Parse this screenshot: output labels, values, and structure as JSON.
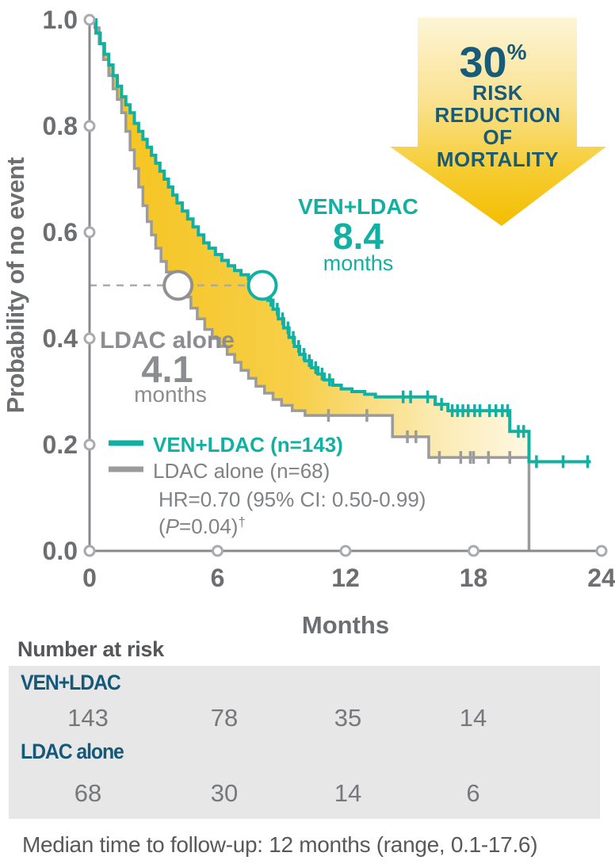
{
  "colors": {
    "teal": "#10b0a3",
    "gray_curve": "#9b9b9b",
    "dark_blue": "#175b78",
    "axis_gray": "#87898c",
    "marker_gray": "#a8aaad",
    "text_gray": "#6d6e71",
    "legend_gray": "#808285",
    "gold_deep": "#f3bd00",
    "gold_pale": "#fdf5d7",
    "box_gray": "#e7e7e8"
  },
  "callout": {
    "percent": "30",
    "percent_sign": "%",
    "lines": [
      "RISK",
      "REDUCTION",
      "OF",
      "MORTALITY"
    ]
  },
  "annotations": {
    "ven": {
      "label": "VEN+LDAC",
      "value": "8.4",
      "unit": "months"
    },
    "ldac": {
      "label": "LDAC alone",
      "value": "4.1",
      "unit": "months"
    }
  },
  "chart_data": {
    "type": "line",
    "subtype": "kaplan-meier-step",
    "xlabel": "Months",
    "ylabel": "Probability of no event",
    "xlim": [
      0,
      24
    ],
    "ylim": [
      0.0,
      1.0
    ],
    "xticks": [
      0,
      6,
      12,
      18,
      24
    ],
    "yticks": [
      "1.0",
      "0.8",
      "0.6",
      "0.4",
      "0.2",
      "0.0"
    ],
    "grid": false,
    "legend_position": "inside-lower-left",
    "median_reference_probability": 0.5,
    "series": [
      {
        "name": "VEN+LDAC (n=143)",
        "color": "#10b0a3",
        "median_months": 8.4,
        "median_marker_month": 8.1,
        "steps": [
          [
            0,
            1.0
          ],
          [
            0.3,
            0.975
          ],
          [
            0.5,
            0.955
          ],
          [
            0.7,
            0.935
          ],
          [
            0.9,
            0.915
          ],
          [
            1.1,
            0.895
          ],
          [
            1.3,
            0.875
          ],
          [
            1.5,
            0.855
          ],
          [
            1.7,
            0.84
          ],
          [
            1.9,
            0.825
          ],
          [
            2.1,
            0.805
          ],
          [
            2.3,
            0.79
          ],
          [
            2.5,
            0.775
          ],
          [
            2.7,
            0.76
          ],
          [
            2.9,
            0.745
          ],
          [
            3.1,
            0.73
          ],
          [
            3.3,
            0.715
          ],
          [
            3.5,
            0.7
          ],
          [
            3.7,
            0.685
          ],
          [
            3.9,
            0.67
          ],
          [
            4.1,
            0.655
          ],
          [
            4.35,
            0.64
          ],
          [
            4.6,
            0.625
          ],
          [
            4.85,
            0.61
          ],
          [
            5.1,
            0.595
          ],
          [
            5.35,
            0.58
          ],
          [
            5.6,
            0.57
          ],
          [
            5.9,
            0.558
          ],
          [
            6.2,
            0.547
          ],
          [
            6.5,
            0.537
          ],
          [
            6.8,
            0.528
          ],
          [
            7.1,
            0.52
          ],
          [
            7.45,
            0.512
          ],
          [
            7.8,
            0.505
          ],
          [
            8.05,
            0.49
          ],
          [
            8.35,
            0.472
          ],
          [
            8.6,
            0.455
          ],
          [
            8.85,
            0.437
          ],
          [
            9.1,
            0.42
          ],
          [
            9.35,
            0.402
          ],
          [
            9.6,
            0.385
          ],
          [
            9.85,
            0.37
          ],
          [
            10.1,
            0.358
          ],
          [
            10.4,
            0.345
          ],
          [
            10.7,
            0.333
          ],
          [
            11.0,
            0.322
          ],
          [
            11.4,
            0.312
          ],
          [
            11.8,
            0.305
          ],
          [
            12.3,
            0.3
          ],
          [
            12.9,
            0.295
          ],
          [
            13.4,
            0.29
          ],
          [
            16.2,
            0.276
          ],
          [
            16.8,
            0.264
          ],
          [
            19.7,
            0.225
          ],
          [
            20.6,
            0.168
          ],
          [
            23.5,
            0.168
          ]
        ],
        "censors": [
          [
            8.5,
            0.472
          ],
          [
            8.8,
            0.455
          ],
          [
            9.05,
            0.437
          ],
          [
            9.3,
            0.42
          ],
          [
            9.55,
            0.402
          ],
          [
            9.8,
            0.385
          ],
          [
            10.05,
            0.37
          ],
          [
            10.3,
            0.358
          ],
          [
            10.6,
            0.345
          ],
          [
            10.9,
            0.333
          ],
          [
            11.25,
            0.322
          ],
          [
            14.7,
            0.29
          ],
          [
            15.05,
            0.29
          ],
          [
            15.85,
            0.29
          ],
          [
            16.5,
            0.276
          ],
          [
            17.0,
            0.264
          ],
          [
            17.25,
            0.264
          ],
          [
            17.5,
            0.264
          ],
          [
            17.75,
            0.264
          ],
          [
            18.05,
            0.264
          ],
          [
            18.3,
            0.264
          ],
          [
            18.75,
            0.264
          ],
          [
            19.05,
            0.264
          ],
          [
            19.35,
            0.264
          ],
          [
            19.6,
            0.264
          ],
          [
            20.1,
            0.225
          ],
          [
            20.35,
            0.225
          ],
          [
            20.95,
            0.168
          ],
          [
            22.2,
            0.168
          ],
          [
            23.35,
            0.168
          ]
        ]
      },
      {
        "name": "LDAC alone (n=68)",
        "color": "#9b9b9b",
        "median_months": 4.1,
        "median_marker_month": 4.15,
        "steps": [
          [
            0,
            1.0
          ],
          [
            0.25,
            0.985
          ],
          [
            0.45,
            0.955
          ],
          [
            0.65,
            0.925
          ],
          [
            0.9,
            0.895
          ],
          [
            1.1,
            0.87
          ],
          [
            1.3,
            0.85
          ],
          [
            1.5,
            0.825
          ],
          [
            1.7,
            0.79
          ],
          [
            1.9,
            0.755
          ],
          [
            2.1,
            0.72
          ],
          [
            2.3,
            0.685
          ],
          [
            2.5,
            0.65
          ],
          [
            2.7,
            0.62
          ],
          [
            2.9,
            0.595
          ],
          [
            3.1,
            0.57
          ],
          [
            3.35,
            0.545
          ],
          [
            3.6,
            0.525
          ],
          [
            3.9,
            0.51
          ],
          [
            4.15,
            0.497
          ],
          [
            4.45,
            0.478
          ],
          [
            4.75,
            0.457
          ],
          [
            5.05,
            0.437
          ],
          [
            5.4,
            0.417
          ],
          [
            5.75,
            0.4
          ],
          [
            6.1,
            0.385
          ],
          [
            6.45,
            0.37
          ],
          [
            6.8,
            0.355
          ],
          [
            7.1,
            0.34
          ],
          [
            7.45,
            0.325
          ],
          [
            7.8,
            0.31
          ],
          [
            8.2,
            0.297
          ],
          [
            8.6,
            0.285
          ],
          [
            9.0,
            0.274
          ],
          [
            9.5,
            0.264
          ],
          [
            10.1,
            0.255
          ],
          [
            14.2,
            0.215
          ],
          [
            15.9,
            0.176
          ],
          [
            20.6,
            0.0
          ]
        ],
        "censors": [
          [
            11.2,
            0.255
          ],
          [
            13.0,
            0.255
          ],
          [
            14.9,
            0.215
          ],
          [
            15.3,
            0.215
          ],
          [
            16.4,
            0.176
          ],
          [
            17.4,
            0.176
          ],
          [
            17.85,
            0.176
          ],
          [
            18.0,
            0.176
          ],
          [
            18.7,
            0.176
          ],
          [
            19.7,
            0.176
          ]
        ]
      }
    ],
    "stats": {
      "hr_line": "HR=0.70 (95% CI: 0.50-0.99)",
      "p_pre": "(",
      "p_symbol": "P",
      "p_post": "=0.04)",
      "dagger": "†"
    }
  },
  "risk_table": {
    "title": "Number at risk",
    "timepoints": [
      0,
      6,
      12,
      18
    ],
    "rows": [
      {
        "label": "VEN+LDAC",
        "values": [
          "143",
          "78",
          "35",
          "14"
        ]
      },
      {
        "label": "LDAC alone",
        "values": [
          "68",
          "30",
          "14",
          "6"
        ]
      }
    ]
  },
  "footnote": "Median time to follow-up: 12 months (range, 0.1-17.6)"
}
